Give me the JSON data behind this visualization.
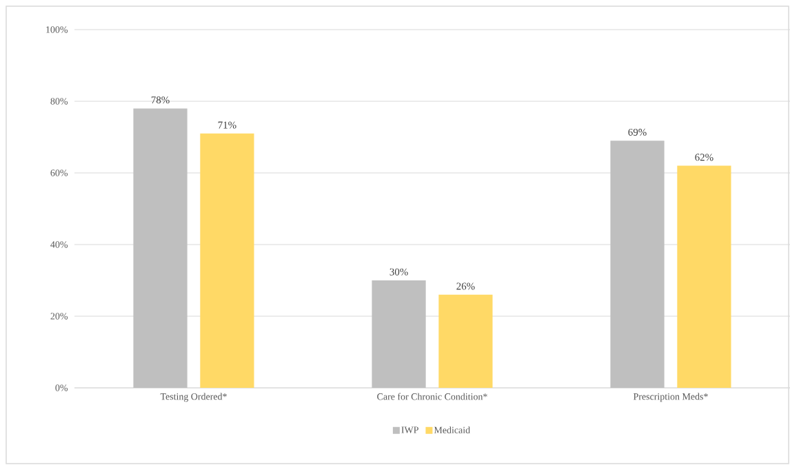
{
  "chart_data": {
    "type": "bar",
    "categories": [
      "Testing Ordered*",
      "Care for Chronic Condition*",
      "Prescription Meds*"
    ],
    "series": [
      {
        "name": "IWP",
        "color": "#bfbfbf",
        "values": [
          78,
          30,
          69
        ],
        "value_labels": [
          "78%",
          "30%",
          "69%"
        ]
      },
      {
        "name": "Medicaid",
        "color": "#ffd966",
        "values": [
          71,
          26,
          62
        ],
        "value_labels": [
          "71%",
          "26%",
          "62%"
        ]
      }
    ],
    "ylim": [
      0,
      100
    ],
    "yticks": [
      {
        "value": 0,
        "label": "0%"
      },
      {
        "value": 20,
        "label": "20%"
      },
      {
        "value": 40,
        "label": "40%"
      },
      {
        "value": 60,
        "label": "60%"
      },
      {
        "value": 80,
        "label": "80%"
      },
      {
        "value": 100,
        "label": "100%"
      }
    ],
    "grid": "y",
    "legend": "bottom"
  }
}
